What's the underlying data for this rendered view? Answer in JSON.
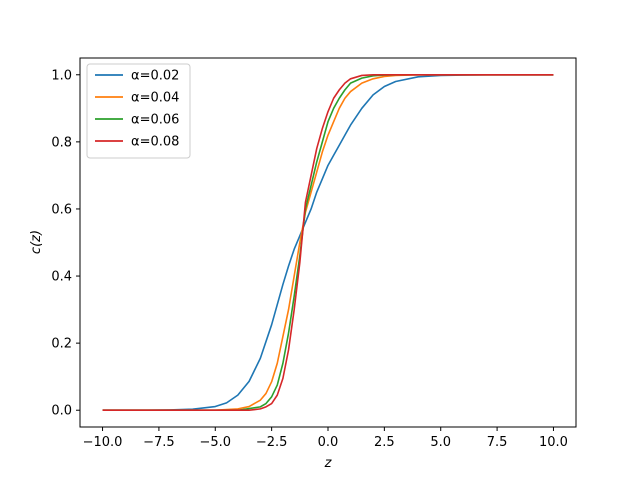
{
  "chart_data": {
    "type": "line",
    "title": "",
    "xlabel": "z",
    "ylabel": "c(z)",
    "xlim": [
      -11.0,
      11.0
    ],
    "ylim": [
      -0.05,
      1.05
    ],
    "xticks": [
      -10.0,
      -7.5,
      -5.0,
      -2.5,
      0.0,
      2.5,
      5.0,
      7.5,
      10.0
    ],
    "xtick_labels": [
      "−10.0",
      "−7.5",
      "−5.0",
      "−2.5",
      "0.0",
      "2.5",
      "5.0",
      "7.5",
      "10.0"
    ],
    "yticks": [
      0.0,
      0.2,
      0.4,
      0.6,
      0.8,
      1.0
    ],
    "ytick_labels": [
      "0.0",
      "0.2",
      "0.4",
      "0.6",
      "0.8",
      "1.0"
    ],
    "grid": false,
    "legend_position": "top-left",
    "series": [
      {
        "name": "α=0.02",
        "color": "#1f77b4",
        "x": [
          -10,
          -8,
          -7,
          -6,
          -5,
          -4.5,
          -4,
          -3.5,
          -3,
          -2.5,
          -2,
          -1.75,
          -1.5,
          -1.25,
          -1,
          -0.75,
          -0.5,
          -0.25,
          0,
          0.25,
          0.5,
          0.75,
          1,
          1.5,
          2,
          2.5,
          3,
          4,
          5,
          6,
          7,
          8,
          10
        ],
        "y": [
          0.0,
          0.0,
          0.001,
          0.003,
          0.011,
          0.022,
          0.045,
          0.086,
          0.155,
          0.255,
          0.375,
          0.43,
          0.48,
          0.52,
          0.56,
          0.6,
          0.65,
          0.69,
          0.73,
          0.76,
          0.79,
          0.82,
          0.85,
          0.9,
          0.94,
          0.965,
          0.98,
          0.994,
          0.998,
          0.999,
          1.0,
          1.0,
          1.0
        ]
      },
      {
        "name": "α=0.04",
        "color": "#ff7f0e",
        "x": [
          -10,
          -5,
          -4,
          -3.5,
          -3,
          -2.75,
          -2.5,
          -2.25,
          -2,
          -1.75,
          -1.5,
          -1.25,
          -1,
          -0.75,
          -0.5,
          -0.25,
          0,
          0.25,
          0.5,
          0.75,
          1,
          1.5,
          2,
          2.5,
          3,
          4,
          5,
          10
        ],
        "y": [
          0.0,
          0.0,
          0.004,
          0.011,
          0.03,
          0.05,
          0.085,
          0.14,
          0.22,
          0.3,
          0.4,
          0.5,
          0.59,
          0.65,
          0.71,
          0.77,
          0.82,
          0.86,
          0.9,
          0.93,
          0.95,
          0.975,
          0.988,
          0.995,
          0.998,
          1.0,
          1.0,
          1.0
        ]
      },
      {
        "name": "α=0.06",
        "color": "#2ca02c",
        "x": [
          -10,
          -4,
          -3,
          -2.75,
          -2.5,
          -2.25,
          -2,
          -1.75,
          -1.5,
          -1.25,
          -1,
          -0.75,
          -0.5,
          -0.25,
          0,
          0.25,
          0.5,
          0.75,
          1,
          1.5,
          2,
          2.5,
          3,
          4,
          10
        ],
        "y": [
          0.0,
          0.0,
          0.01,
          0.02,
          0.04,
          0.075,
          0.14,
          0.23,
          0.34,
          0.46,
          0.6,
          0.67,
          0.74,
          0.8,
          0.86,
          0.9,
          0.93,
          0.955,
          0.975,
          0.99,
          0.997,
          0.999,
          1.0,
          1.0,
          1.0
        ]
      },
      {
        "name": "α=0.08",
        "color": "#d62728",
        "x": [
          -10,
          -3.5,
          -3,
          -2.75,
          -2.5,
          -2.25,
          -2,
          -1.75,
          -1.5,
          -1.25,
          -1,
          -0.75,
          -0.5,
          -0.25,
          0,
          0.25,
          0.5,
          0.75,
          1,
          1.5,
          2,
          2.5,
          10
        ],
        "y": [
          0.0,
          0.0,
          0.004,
          0.01,
          0.02,
          0.045,
          0.095,
          0.18,
          0.3,
          0.44,
          0.62,
          0.7,
          0.78,
          0.84,
          0.89,
          0.93,
          0.955,
          0.975,
          0.988,
          0.998,
          1.0,
          1.0,
          1.0
        ]
      }
    ]
  }
}
